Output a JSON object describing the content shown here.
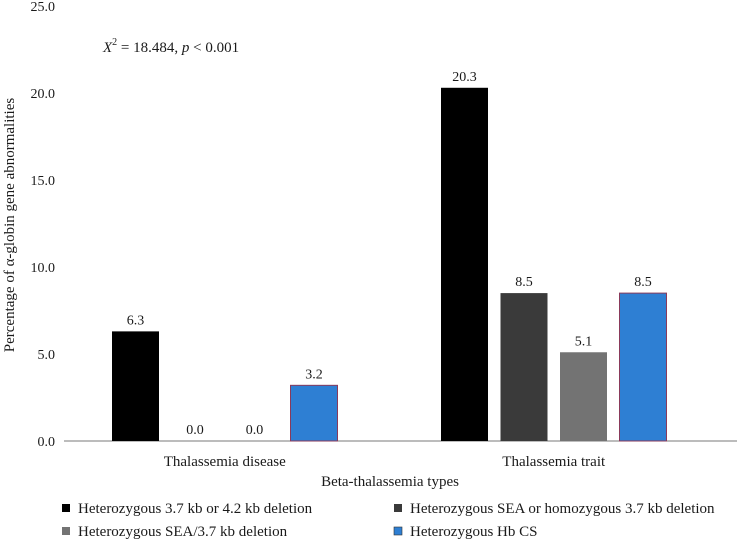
{
  "chart_data": {
    "type": "bar",
    "title": "",
    "xlabel": "Beta-thalassemia types",
    "ylabel": "Percentage of α-globin gene abnormalities",
    "ylim": [
      0,
      25
    ],
    "yticks": [
      "0.0",
      "5.0",
      "10.0",
      "15.0",
      "20.0",
      "25.0"
    ],
    "grid": false,
    "legend_position": "bottom",
    "categories": [
      "Thalassemia disease",
      "Thalassemia trait"
    ],
    "annotation": {
      "stat_symbol": "X",
      "stat_exponent": "2",
      "stat_value": " = 18.484, ",
      "p_symbol": "p",
      "p_value": " < 0.001"
    },
    "series": [
      {
        "name": "Heterozygous 3.7 kb or 4.2 kb deletion",
        "color": "#000000",
        "values": [
          6.3,
          20.3
        ],
        "labels": [
          "6.3",
          "20.3"
        ]
      },
      {
        "name": "Heterozygous SEA or homozygous 3.7 kb deletion",
        "color": "#3a3a3a",
        "values": [
          0.0,
          8.5
        ],
        "labels": [
          "0.0",
          "8.5"
        ]
      },
      {
        "name": "Heterozygous SEA/3.7 kb deletion",
        "color": "#737373",
        "values": [
          0.0,
          5.1
        ],
        "labels": [
          "0.0",
          "5.1"
        ]
      },
      {
        "name": "Heterozygous Hb CS",
        "color": "#2e7fd3",
        "values": [
          3.2,
          8.5
        ],
        "labels": [
          "3.2",
          "8.5"
        ]
      }
    ]
  }
}
